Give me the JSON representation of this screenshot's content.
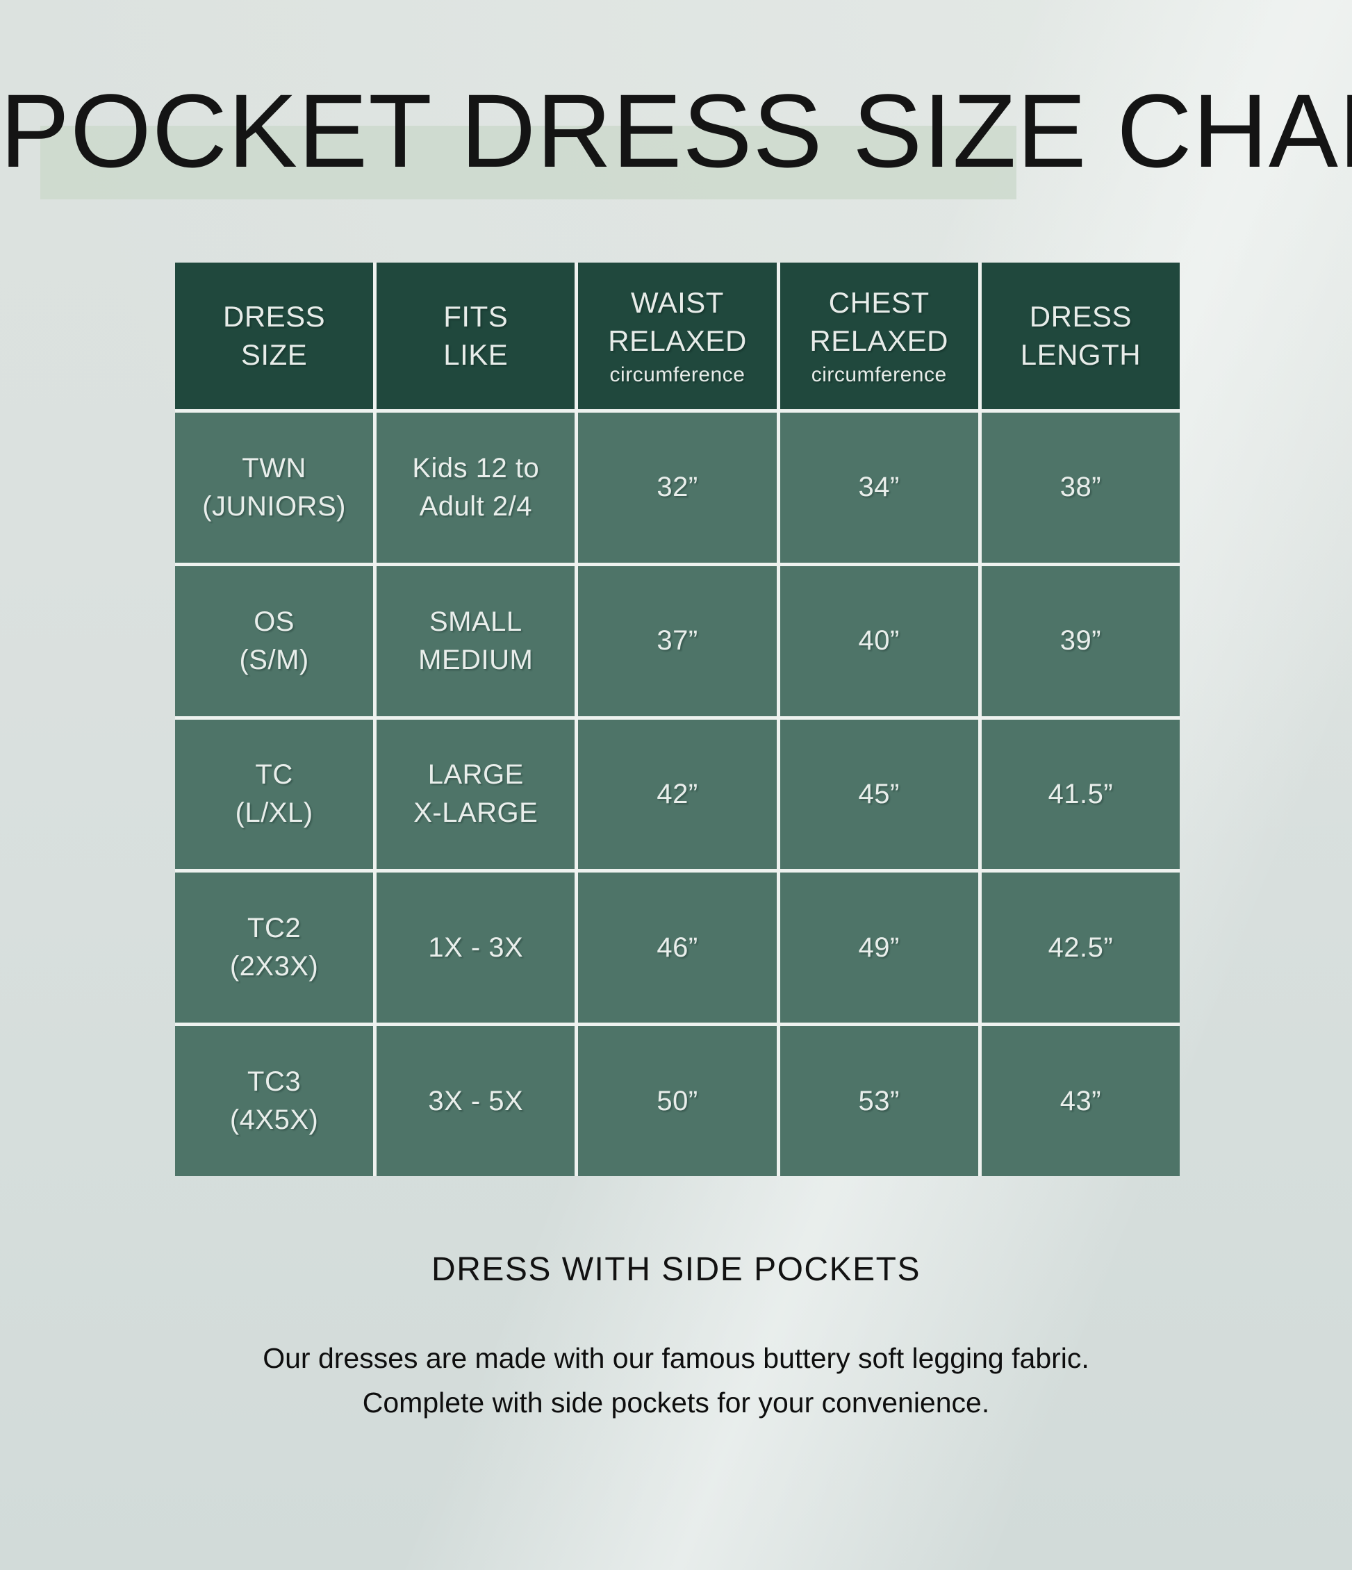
{
  "page": {
    "title": "POCKET DRESS SIZE CHART",
    "subtitle": "DRESS WITH SIDE POCKETS",
    "description": "Our dresses are made with our famous buttery soft legging fabric.\nComplete with side pockets for your convenience."
  },
  "colors": {
    "header_bg": "#20483d",
    "row_bg": "#4e7468",
    "grid_line": "#eef2ef",
    "title_highlight": "#cdd9cc",
    "page_background": "#d9e0de",
    "table_text": "#e9eeeb",
    "title_text": "#141414"
  },
  "table": {
    "headers": [
      {
        "label": "DRESS\nSIZE",
        "sub": ""
      },
      {
        "label": "FITS\nLIKE",
        "sub": ""
      },
      {
        "label": "WAIST\nRELAXED",
        "sub": "circumference"
      },
      {
        "label": "CHEST\nRELAXED",
        "sub": "circumference"
      },
      {
        "label": "DRESS\nLENGTH",
        "sub": ""
      }
    ],
    "rows": [
      {
        "size": "TWN\n(JUNIORS)",
        "fits": "Kids 12 to\nAdult 2/4",
        "waist": "32”",
        "chest": "34”",
        "length": "38”"
      },
      {
        "size": "OS\n(S/M)",
        "fits": "SMALL\nMEDIUM",
        "waist": "37”",
        "chest": "40”",
        "length": "39”"
      },
      {
        "size": "TC\n(L/XL)",
        "fits": "LARGE\nX-LARGE",
        "waist": "42”",
        "chest": "45”",
        "length": "41.5”"
      },
      {
        "size": "TC2\n(2X3X)",
        "fits": "1X - 3X",
        "waist": "46”",
        "chest": "49”",
        "length": "42.5”"
      },
      {
        "size": "TC3\n(4X5X)",
        "fits": "3X - 5X",
        "waist": "50”",
        "chest": "53”",
        "length": "43”"
      }
    ]
  },
  "chart_data": {
    "type": "table",
    "title": "POCKET DRESS SIZE CHART",
    "columns": [
      "DRESS SIZE",
      "FITS LIKE",
      "WAIST RELAXED (circumference)",
      "CHEST RELAXED (circumference)",
      "DRESS LENGTH"
    ],
    "rows": [
      [
        "TWN (JUNIORS)",
        "Kids 12 to Adult 2/4",
        "32”",
        "34”",
        "38”"
      ],
      [
        "OS (S/M)",
        "SMALL MEDIUM",
        "37”",
        "40”",
        "39”"
      ],
      [
        "TC (L/XL)",
        "LARGE X-LARGE",
        "42”",
        "45”",
        "41.5”"
      ],
      [
        "TC2 (2X3X)",
        "1X - 3X",
        "46”",
        "49”",
        "42.5”"
      ],
      [
        "TC3 (4X5X)",
        "3X - 5X",
        "50”",
        "53”",
        "43”"
      ]
    ],
    "footer_heading": "DRESS WITH SIDE POCKETS",
    "footer_text": "Our dresses are made with our famous buttery soft legging fabric. Complete with side pockets for your convenience."
  }
}
